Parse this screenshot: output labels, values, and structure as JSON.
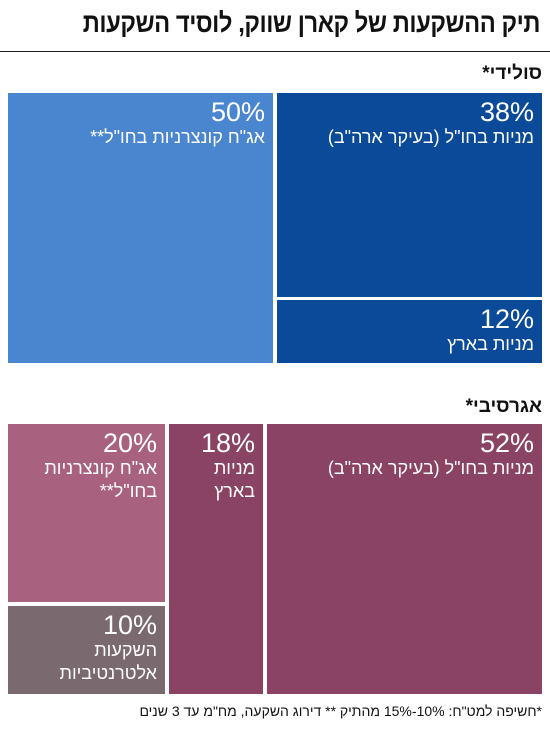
{
  "title": "תיק ההשקעות של קארן שווק, לוסיד השקעות",
  "footnote": "*חשיפה למט\"ח: 10%-15% מהתיק ** דירוג השקעה, מח\"מ עד 3 שנים",
  "chart_data": [
    {
      "type": "treemap",
      "title": "סולידי*",
      "items": [
        {
          "label": "מניות בחו\"ל (בעיקר ארה\"ב)",
          "value": 38,
          "display": "38%",
          "color": "#0a4a98"
        },
        {
          "label": "מניות בארץ",
          "value": 12,
          "display": "12%",
          "color": "#0a4a98"
        },
        {
          "label": "אג\"ח קונצרניות בחו\"ל**",
          "value": 50,
          "display": "50%",
          "color": "#4a86cf"
        }
      ]
    },
    {
      "type": "treemap",
      "title": "אגרסיבי*",
      "items": [
        {
          "label": "מניות בחו\"ל (בעיקר ארה\"ב)",
          "value": 52,
          "display": "52%",
          "color": "#8b4363"
        },
        {
          "label": "מניות בארץ",
          "value": 18,
          "display": "18%",
          "color": "#8b4363"
        },
        {
          "label": "אג\"ח קונצרניות\nבחו\"ל**",
          "value": 20,
          "display": "20%",
          "color": "#a8627f"
        },
        {
          "label": "השקעות\nאלטרנטיביות",
          "value": 10,
          "display": "10%",
          "color": "#7a6a6f"
        }
      ]
    }
  ]
}
